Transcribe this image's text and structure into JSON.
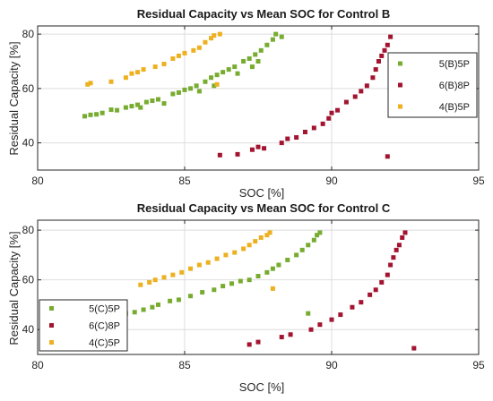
{
  "colors": {
    "5P_B": "#77ac30",
    "8P": "#a2142f",
    "4P": "#edb120",
    "axis": "#262626",
    "grid": "#dedede"
  },
  "chart_data": [
    {
      "type": "scatter",
      "title": "Residual Capacity vs Mean SOC for Control B",
      "xlabel": "SOC [%]",
      "ylabel": "Residual Capacity [%]",
      "xlim": [
        80,
        95
      ],
      "ylim": [
        30,
        83
      ],
      "xticks": [
        80,
        85,
        90,
        95
      ],
      "yticks": [
        40,
        60,
        80
      ],
      "grid": true,
      "legend_position": "right",
      "series": [
        {
          "name": "5(B)5P",
          "color": "#77ac30",
          "points": [
            [
              81.6,
              49.8
            ],
            [
              81.8,
              50.3
            ],
            [
              82.0,
              50.5
            ],
            [
              82.2,
              51
            ],
            [
              82.5,
              52.2
            ],
            [
              82.7,
              52
            ],
            [
              83.0,
              53
            ],
            [
              83.2,
              53.5
            ],
            [
              83.4,
              54
            ],
            [
              83.5,
              53
            ],
            [
              83.7,
              55
            ],
            [
              83.9,
              55.5
            ],
            [
              84.1,
              56
            ],
            [
              84.3,
              54.5
            ],
            [
              84.6,
              58
            ],
            [
              84.8,
              58.5
            ],
            [
              85.0,
              59.5
            ],
            [
              85.2,
              60
            ],
            [
              85.4,
              61
            ],
            [
              85.5,
              59
            ],
            [
              85.7,
              62.5
            ],
            [
              85.9,
              64
            ],
            [
              86.0,
              61
            ],
            [
              86.1,
              65
            ],
            [
              86.3,
              66
            ],
            [
              86.5,
              67
            ],
            [
              86.7,
              68
            ],
            [
              86.8,
              65.5
            ],
            [
              87.0,
              70
            ],
            [
              87.2,
              71
            ],
            [
              87.4,
              72.5
            ],
            [
              87.5,
              70
            ],
            [
              87.6,
              74
            ],
            [
              87.8,
              76
            ],
            [
              88.0,
              78
            ],
            [
              88.1,
              80
            ],
            [
              88.3,
              79
            ],
            [
              87.3,
              68
            ]
          ]
        },
        {
          "name": "6(B)8P",
          "color": "#a2142f",
          "points": [
            [
              86.2,
              35.5
            ],
            [
              86.8,
              35.8
            ],
            [
              87.3,
              37.5
            ],
            [
              87.5,
              38.5
            ],
            [
              87.7,
              38
            ],
            [
              88.3,
              40
            ],
            [
              88.5,
              41.5
            ],
            [
              88.8,
              42
            ],
            [
              89.1,
              44
            ],
            [
              89.4,
              45.5
            ],
            [
              89.7,
              47
            ],
            [
              89.9,
              49
            ],
            [
              90.0,
              51
            ],
            [
              90.2,
              52
            ],
            [
              90.5,
              55
            ],
            [
              90.8,
              57
            ],
            [
              91.0,
              59
            ],
            [
              91.2,
              61
            ],
            [
              91.4,
              64
            ],
            [
              91.5,
              67
            ],
            [
              91.6,
              70
            ],
            [
              91.7,
              72
            ],
            [
              91.8,
              74
            ],
            [
              91.9,
              76
            ],
            [
              92.0,
              79
            ],
            [
              91.9,
              35
            ]
          ]
        },
        {
          "name": "4(B)5P",
          "color": "#edb120",
          "points": [
            [
              81.7,
              61.5
            ],
            [
              81.8,
              62
            ],
            [
              82.5,
              62.5
            ],
            [
              83.0,
              64
            ],
            [
              83.2,
              65.5
            ],
            [
              83.4,
              66
            ],
            [
              83.6,
              67
            ],
            [
              84.0,
              68
            ],
            [
              84.3,
              69
            ],
            [
              84.6,
              71
            ],
            [
              84.8,
              72
            ],
            [
              85.0,
              73
            ],
            [
              85.3,
              74
            ],
            [
              85.5,
              75
            ],
            [
              85.7,
              77
            ],
            [
              85.9,
              78.5
            ],
            [
              86.0,
              79.5
            ],
            [
              86.2,
              80
            ],
            [
              86.1,
              61.5
            ]
          ]
        }
      ]
    },
    {
      "type": "scatter",
      "title": "Residual Capacity vs Mean SOC for Control C",
      "xlabel": "SOC [%]",
      "ylabel": "Residual Capacity [%]",
      "xlim": [
        80,
        95
      ],
      "ylim": [
        30,
        84
      ],
      "xticks": [
        80,
        85,
        90,
        95
      ],
      "yticks": [
        40,
        60,
        80
      ],
      "grid": true,
      "legend_position": "bottom-left",
      "series": [
        {
          "name": "5(C)5P",
          "color": "#77ac30",
          "points": [
            [
              82.7,
              45
            ],
            [
              83.0,
              46.5
            ],
            [
              83.3,
              47
            ],
            [
              83.6,
              48
            ],
            [
              83.9,
              49
            ],
            [
              84.1,
              50
            ],
            [
              84.5,
              51.5
            ],
            [
              84.8,
              52
            ],
            [
              85.2,
              53.5
            ],
            [
              85.6,
              55
            ],
            [
              86.0,
              56
            ],
            [
              86.3,
              57.5
            ],
            [
              86.6,
              58.5
            ],
            [
              86.9,
              59.5
            ],
            [
              87.2,
              60
            ],
            [
              87.5,
              61.5
            ],
            [
              87.8,
              63
            ],
            [
              88.0,
              64.5
            ],
            [
              88.2,
              66
            ],
            [
              88.5,
              68
            ],
            [
              88.8,
              70
            ],
            [
              89.0,
              72
            ],
            [
              89.2,
              74
            ],
            [
              89.4,
              76
            ],
            [
              89.5,
              78
            ],
            [
              89.6,
              79
            ],
            [
              89.2,
              46.5
            ]
          ]
        },
        {
          "name": "6(C)8P",
          "color": "#a2142f",
          "points": [
            [
              87.2,
              34
            ],
            [
              87.5,
              35
            ],
            [
              88.3,
              37
            ],
            [
              88.6,
              38
            ],
            [
              89.3,
              40
            ],
            [
              89.6,
              42
            ],
            [
              90.0,
              44
            ],
            [
              90.3,
              46
            ],
            [
              90.7,
              49
            ],
            [
              91.0,
              51
            ],
            [
              91.3,
              54
            ],
            [
              91.5,
              56
            ],
            [
              91.7,
              59
            ],
            [
              91.9,
              62
            ],
            [
              92.0,
              66
            ],
            [
              92.1,
              69
            ],
            [
              92.2,
              72
            ],
            [
              92.3,
              74
            ],
            [
              92.4,
              77
            ],
            [
              92.5,
              79
            ],
            [
              92.8,
              32.5
            ]
          ]
        },
        {
          "name": "4(C)5P",
          "color": "#edb120",
          "points": [
            [
              83.5,
              58
            ],
            [
              83.8,
              59
            ],
            [
              84.0,
              60
            ],
            [
              84.3,
              61
            ],
            [
              84.6,
              62
            ],
            [
              84.9,
              63
            ],
            [
              85.2,
              64.5
            ],
            [
              85.5,
              66
            ],
            [
              85.8,
              67
            ],
            [
              86.1,
              68.5
            ],
            [
              86.4,
              70
            ],
            [
              86.7,
              71
            ],
            [
              87.0,
              72.5
            ],
            [
              87.2,
              74
            ],
            [
              87.4,
              75.5
            ],
            [
              87.6,
              77
            ],
            [
              87.8,
              78
            ],
            [
              87.9,
              79
            ],
            [
              88.0,
              56.5
            ]
          ]
        }
      ]
    }
  ]
}
